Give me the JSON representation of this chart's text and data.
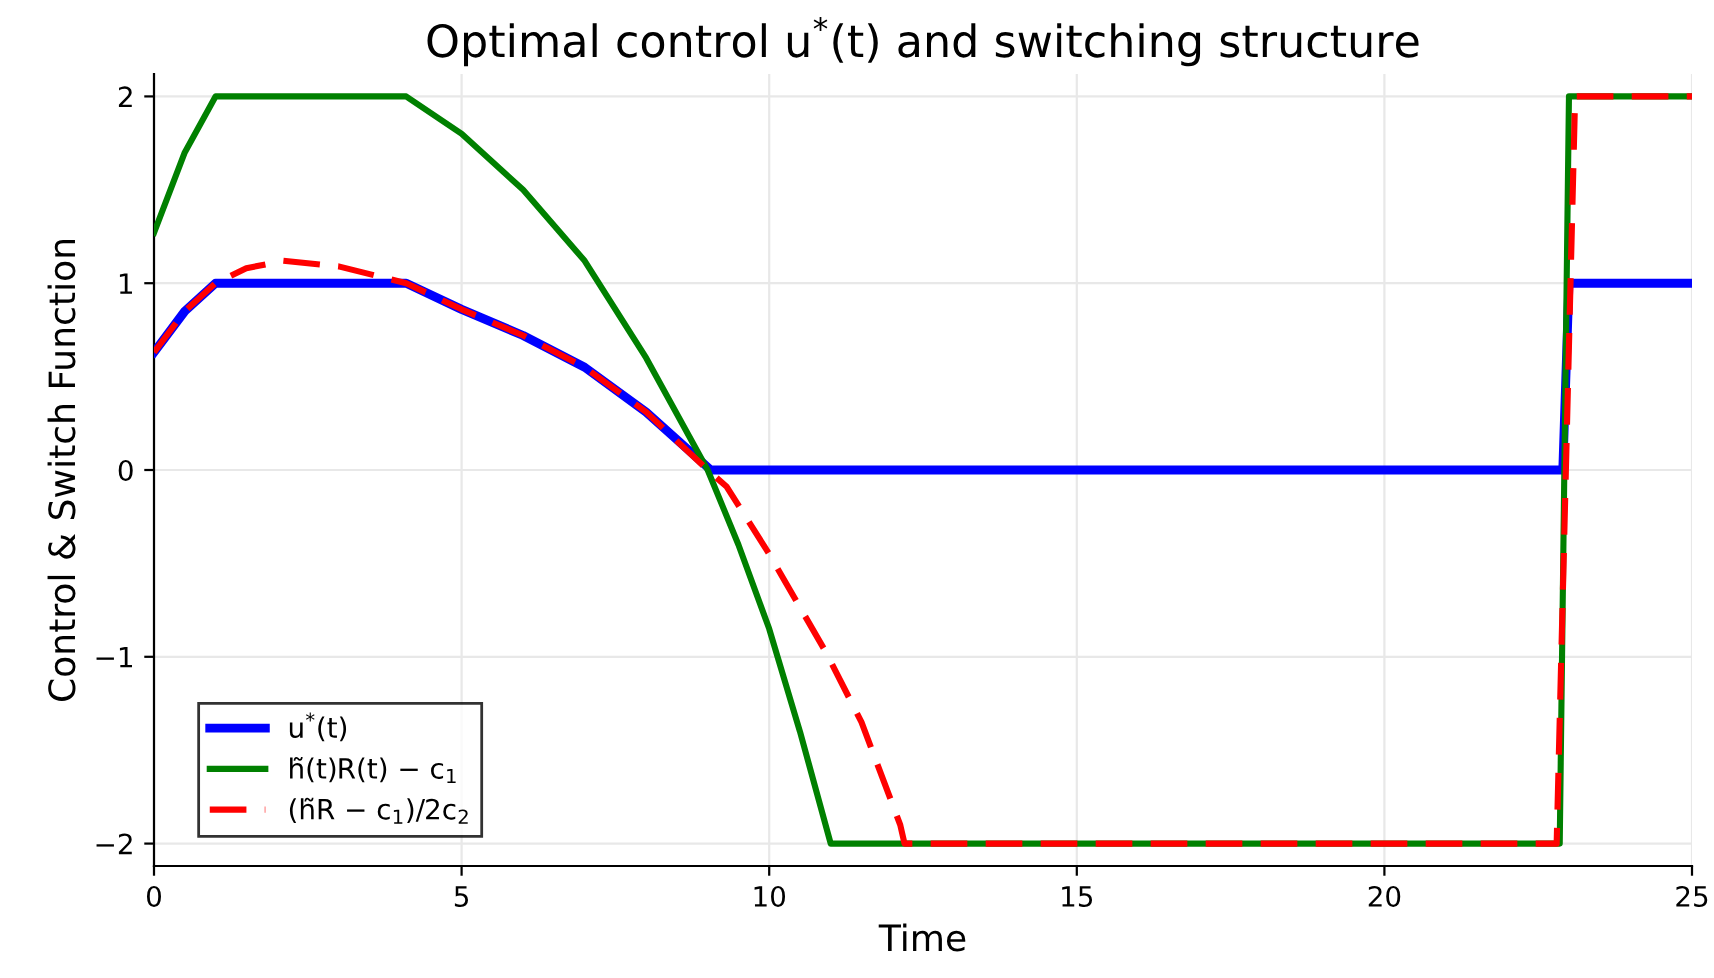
{
  "chart_data": {
    "type": "line",
    "title": "Optimal control u$^{*}$(t) and switching structure",
    "xlabel": "Time",
    "ylabel": "Control & Switch Function",
    "xlim": [
      0,
      25
    ],
    "ylim": [
      -2.12,
      2.12
    ],
    "xticks": [
      0,
      5,
      10,
      15,
      20,
      25
    ],
    "yticks": [
      {
        "value": -2,
        "label": "−2"
      },
      {
        "value": -1,
        "label": "−1"
      },
      0,
      1,
      2
    ],
    "grid": true,
    "legend": "bottom left",
    "series": [
      {
        "name": "u$^{*}$(t)",
        "color": "#0000ff",
        "line_style": "solid",
        "x": [
          0,
          0.5,
          1,
          4.1,
          5,
          6,
          7,
          8,
          9.05,
          22.9,
          23.0,
          25
        ],
        "values": [
          0.63,
          0.85,
          1.0,
          1.0,
          0.86,
          0.72,
          0.55,
          0.31,
          0,
          0,
          1,
          1
        ]
      },
      {
        "name": "h̃(t)R(t) − c$_{1}$",
        "color": "#008000",
        "line_style": "solid",
        "x": [
          0,
          0.5,
          1,
          4.1,
          5,
          6,
          7,
          8,
          9,
          9.5,
          10,
          10.5,
          11,
          22.85,
          23.0,
          25
        ],
        "values": [
          1.27,
          1.7,
          2,
          2,
          1.8,
          1.5,
          1.12,
          0.6,
          0.0,
          -0.4,
          -0.85,
          -1.4,
          -2,
          -2,
          2,
          2
        ]
      },
      {
        "name": "(h̃R − c$_{1}$)/2c$_{2}$",
        "color": "#ff0000",
        "line_style": "dashed",
        "x": [
          0,
          0.5,
          1,
          1.5,
          2.1,
          3,
          4.1,
          5,
          6,
          7,
          8,
          9,
          9.31,
          10,
          10.93,
          11.5,
          12.13,
          12.2,
          22.8,
          23.1,
          25
        ],
        "values": [
          0.63,
          0.85,
          1.0,
          1.08,
          1.12,
          1.09,
          1.0,
          0.86,
          0.72,
          0.55,
          0.31,
          0.0,
          -0.09,
          -0.45,
          -0.98,
          -1.35,
          -1.9,
          -2,
          -2,
          2,
          2
        ]
      }
    ]
  }
}
